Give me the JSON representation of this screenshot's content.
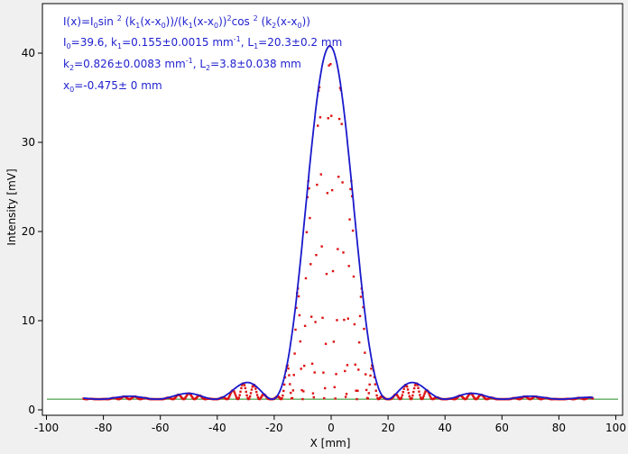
{
  "chart_data": {
    "type": "line",
    "xlabel": "X [mm]",
    "ylabel": "Intensity [mV]",
    "xlim": [
      -100,
      100
    ],
    "ylim": [
      0,
      45
    ],
    "x_ticks": [
      -100,
      -80,
      -60,
      -40,
      -20,
      0,
      20,
      40,
      60,
      80,
      100
    ],
    "y_ticks": [
      0,
      10,
      20,
      30,
      40
    ],
    "grid": false,
    "colors": {
      "fit": "#1a1acc",
      "data": "#dd1111",
      "baseline": "#228b22",
      "annotation": "#1f1fcf",
      "plot_bg": "#ffffff",
      "page_bg": "#f0f0f0"
    },
    "annotation": {
      "line1": {
        "a": "I(x)=I",
        "a_sub": "0",
        "b": "sin ",
        "b_sup": "2",
        "c": " (k",
        "c_sub": "1",
        "d": "(x-x",
        "d_sub": "0",
        "e": "))/(k",
        "e_sub": "1",
        "f": "(x-x",
        "f_sub": "0",
        "g": "))",
        "g_sup": "2",
        "h": "cos ",
        "h_sup": "2",
        "i": " (k",
        "i_sub": "2",
        "j": "(x-x",
        "j_sub": "0",
        "k": "))"
      },
      "line2": {
        "a": "I",
        "a_sub": "0",
        "b": "=39.6,  k",
        "b_sub": "1",
        "c": "=0.155±0.0015 mm",
        "c_sup": "-1",
        "d": ",   L",
        "d_sub": "1",
        "e": "=20.3±0.2 mm"
      },
      "line3": {
        "a": "k",
        "a_sub": "2",
        "b": "=0.826±0.0083 mm",
        "b_sup": "-1",
        "c": ",   L",
        "c_sub": "2",
        "d": "=3.8±0.038 mm"
      },
      "line4": {
        "a": "x",
        "a_sub": "0",
        "b": "=-0.475±  0 mm"
      }
    },
    "fit_params": {
      "I0": 39.6,
      "k1": 0.155,
      "k2": 0.826,
      "x0": -0.475,
      "baseline": 1.2
    },
    "x_range": [
      -87,
      92
    ],
    "data_marker": "square-dots"
  }
}
